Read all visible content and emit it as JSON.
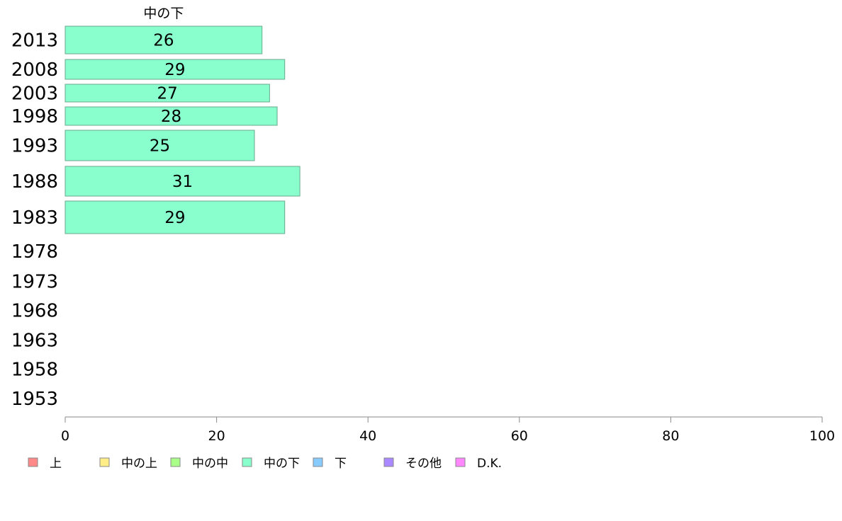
{
  "chart_data": {
    "type": "bar",
    "orientation": "horizontal",
    "series_label": "中の下",
    "categories": [
      "2013",
      "2008",
      "2003",
      "1998",
      "1993",
      "1988",
      "1983",
      "1978",
      "1973",
      "1968",
      "1963",
      "1958",
      "1953"
    ],
    "series": [
      {
        "name": "中の下",
        "color": "#88ffcc",
        "values": [
          26,
          29,
          27,
          28,
          25,
          31,
          29,
          null,
          null,
          null,
          null,
          null,
          null
        ]
      }
    ],
    "xlim": [
      0,
      100
    ],
    "xticks": [
      0,
      20,
      40,
      60,
      80,
      100
    ],
    "legend": {
      "position": "bottom",
      "entries": [
        {
          "label": "上",
          "color": "#ff8888"
        },
        {
          "label": "中の上",
          "color": "#ffee88"
        },
        {
          "label": "中の中",
          "color": "#aaff88"
        },
        {
          "label": "中の下",
          "color": "#88ffcc"
        },
        {
          "label": "下",
          "color": "#88ccff"
        },
        {
          "label": "その他",
          "color": "#aa88ff"
        },
        {
          "label": "D.K.",
          "color": "#ff88ff"
        }
      ]
    }
  }
}
